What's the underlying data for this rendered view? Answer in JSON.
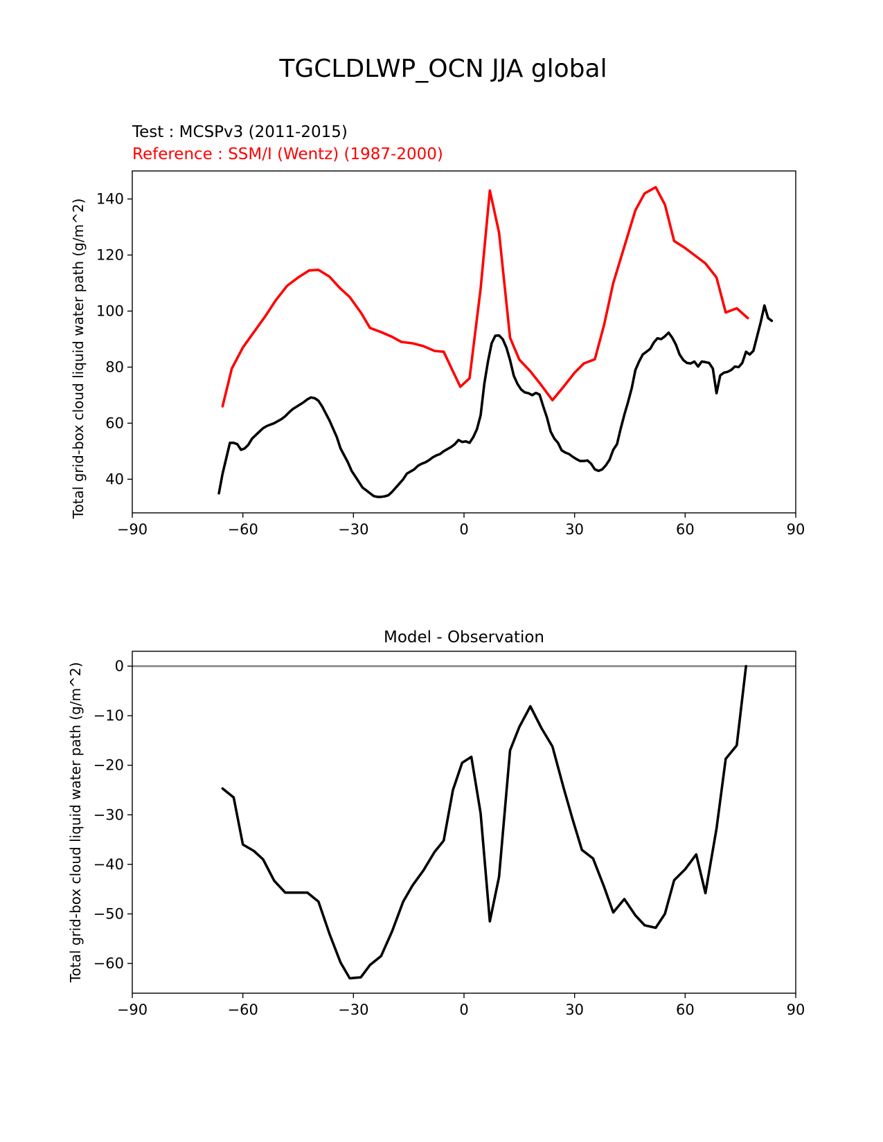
{
  "figure": {
    "title": "TGCLDLWP_OCN JJA global"
  },
  "chart_data": [
    {
      "type": "line",
      "test_label": "Test : MCSPv3 (2011-2015)",
      "reference_label": "Reference : SSM/I (Wentz) (1987-2000)",
      "xlabel": "",
      "ylabel": "Total grid-box cloud liquid water path (g/m^2)",
      "xlim": [
        -90,
        90
      ],
      "ylim": [
        28,
        150
      ],
      "xticks": [
        -90,
        -60,
        -30,
        0,
        30,
        60,
        90
      ],
      "xtick_labels": [
        "−90",
        "−60",
        "−30",
        "0",
        "30",
        "60",
        "90"
      ],
      "yticks": [
        40,
        60,
        80,
        100,
        120,
        140
      ],
      "ytick_labels": [
        "40",
        "60",
        "80",
        "100",
        "120",
        "140"
      ],
      "series": [
        {
          "color": "#ff0000",
          "points": [
            [
              -65.5,
              66
            ],
            [
              -63,
              79.5
            ],
            [
              -60,
              87
            ],
            [
              -57,
              92.5
            ],
            [
              -54,
              98
            ],
            [
              -51,
              104
            ],
            [
              -48,
              109
            ],
            [
              -45,
              112
            ],
            [
              -42,
              114.5
            ],
            [
              -39.5,
              114.7
            ],
            [
              -36.5,
              112.3
            ],
            [
              -33.5,
              108
            ],
            [
              -31,
              105
            ],
            [
              -28,
              99.5
            ],
            [
              -25.5,
              94
            ],
            [
              -22.5,
              92.5
            ],
            [
              -19.5,
              90.8
            ],
            [
              -17,
              89
            ],
            [
              -14,
              88.5
            ],
            [
              -11,
              87.5
            ],
            [
              -8,
              85.8
            ],
            [
              -5.5,
              85.5
            ],
            [
              -3,
              78.5
            ],
            [
              -1,
              73
            ],
            [
              1.5,
              76
            ],
            [
              4.5,
              108
            ],
            [
              7,
              143
            ],
            [
              9.5,
              128
            ],
            [
              12.5,
              90.5
            ],
            [
              15,
              82.7
            ],
            [
              18,
              78.5
            ],
            [
              21,
              73.5
            ],
            [
              24,
              68.2
            ],
            [
              27,
              73
            ],
            [
              30,
              78
            ],
            [
              32.5,
              81.3
            ],
            [
              35.5,
              82.8
            ],
            [
              38,
              95
            ],
            [
              40.5,
              110
            ],
            [
              43.5,
              123
            ],
            [
              46.5,
              136
            ],
            [
              49,
              142
            ],
            [
              52,
              144.2
            ],
            [
              54.5,
              138
            ],
            [
              57,
              125
            ],
            [
              60,
              122.5
            ],
            [
              63,
              119.5
            ],
            [
              65.5,
              117
            ],
            [
              68.5,
              112
            ],
            [
              71,
              99.5
            ],
            [
              74,
              101
            ],
            [
              77,
              97.5
            ]
          ]
        },
        {
          "color": "#000000",
          "points": [
            [
              -66.5,
              35
            ],
            [
              -65.5,
              42
            ],
            [
              -63.5,
              53
            ],
            [
              -62.5,
              53
            ],
            [
              -61.5,
              52.5
            ],
            [
              -60.5,
              50.5
            ],
            [
              -59.5,
              51
            ],
            [
              -58.5,
              52.3
            ],
            [
              -57.5,
              54.5
            ],
            [
              -55.5,
              57
            ],
            [
              -54.5,
              58.2
            ],
            [
              -53.5,
              59
            ],
            [
              -51.5,
              60
            ],
            [
              -49.5,
              61.5
            ],
            [
              -48.5,
              62.5
            ],
            [
              -47.5,
              63.8
            ],
            [
              -46.5,
              65
            ],
            [
              -45.5,
              65.8
            ],
            [
              -43.5,
              67.5
            ],
            [
              -42.5,
              68.5
            ],
            [
              -41.5,
              69.2
            ],
            [
              -40.5,
              68.9
            ],
            [
              -39.5,
              68
            ],
            [
              -38.5,
              66
            ],
            [
              -36.5,
              61
            ],
            [
              -34.5,
              55
            ],
            [
              -33.5,
              51
            ],
            [
              -31.5,
              46
            ],
            [
              -30.5,
              43
            ],
            [
              -29.5,
              41
            ],
            [
              -28.5,
              39
            ],
            [
              -27.5,
              37
            ],
            [
              -26.5,
              36
            ],
            [
              -25.5,
              35
            ],
            [
              -24.5,
              34
            ],
            [
              -23.5,
              33.7
            ],
            [
              -22.5,
              33.7
            ],
            [
              -21.5,
              33.9
            ],
            [
              -20.5,
              34.3
            ],
            [
              -19.5,
              35.5
            ],
            [
              -18.5,
              37
            ],
            [
              -17.5,
              38.5
            ],
            [
              -16.5,
              40
            ],
            [
              -15.5,
              42
            ],
            [
              -13.5,
              43.5
            ],
            [
              -12.5,
              44.8
            ],
            [
              -11.5,
              45.5
            ],
            [
              -10.5,
              46
            ],
            [
              -9.5,
              46.8
            ],
            [
              -8.5,
              47.8
            ],
            [
              -7.5,
              48.5
            ],
            [
              -6.5,
              49
            ],
            [
              -5.5,
              50
            ],
            [
              -3.5,
              51.5
            ],
            [
              -2.5,
              52.5
            ],
            [
              -1.5,
              54
            ],
            [
              -0.5,
              53.3
            ],
            [
              0.5,
              53.5
            ],
            [
              1.5,
              53
            ],
            [
              2.5,
              55
            ],
            [
              3.5,
              57.8
            ],
            [
              4.5,
              62.8
            ],
            [
              5.5,
              74
            ],
            [
              6.5,
              82
            ],
            [
              7.5,
              88.5
            ],
            [
              8.5,
              91.2
            ],
            [
              9.5,
              91.3
            ],
            [
              10.5,
              90
            ],
            [
              11.5,
              87
            ],
            [
              12.5,
              82.5
            ],
            [
              13.5,
              77
            ],
            [
              14.5,
              74
            ],
            [
              15.5,
              72
            ],
            [
              16.5,
              71
            ],
            [
              17.5,
              70.7
            ],
            [
              18.5,
              70
            ],
            [
              19.5,
              70.8
            ],
            [
              20.5,
              70.2
            ],
            [
              21.5,
              66
            ],
            [
              22.5,
              62
            ],
            [
              23.5,
              57
            ],
            [
              24.5,
              54.5
            ],
            [
              25.5,
              53
            ],
            [
              26.5,
              50.3
            ],
            [
              27.5,
              49.5
            ],
            [
              28.5,
              49
            ],
            [
              29.5,
              48
            ],
            [
              30.5,
              47.2
            ],
            [
              31.5,
              46.5
            ],
            [
              32.5,
              46.5
            ],
            [
              33.5,
              46.7
            ],
            [
              34.5,
              45.5
            ],
            [
              35.5,
              43.5
            ],
            [
              36.5,
              43
            ],
            [
              37.5,
              43.5
            ],
            [
              38.5,
              45
            ],
            [
              39.5,
              47
            ],
            [
              40.5,
              50.5
            ],
            [
              41.5,
              52.5
            ],
            [
              42.5,
              58
            ],
            [
              43.5,
              63
            ],
            [
              44.5,
              67.5
            ],
            [
              45.5,
              72.5
            ],
            [
              46.5,
              79
            ],
            [
              47.5,
              82
            ],
            [
              48.5,
              84.5
            ],
            [
              49.5,
              85.5
            ],
            [
              50.5,
              86.5
            ],
            [
              51.5,
              88.8
            ],
            [
              52.5,
              90.3
            ],
            [
              53.5,
              90
            ],
            [
              54.5,
              91
            ],
            [
              55.5,
              92.3
            ],
            [
              56.5,
              90.5
            ],
            [
              57.5,
              88
            ],
            [
              58.5,
              84.5
            ],
            [
              59.5,
              82.5
            ],
            [
              60.5,
              81.5
            ],
            [
              61.5,
              81.3
            ],
            [
              62.5,
              82
            ],
            [
              63.5,
              80.2
            ],
            [
              64.5,
              82
            ],
            [
              65.5,
              81.8
            ],
            [
              66.5,
              81.5
            ],
            [
              67.5,
              79.5
            ],
            [
              68.5,
              70.7
            ],
            [
              69.5,
              77
            ],
            [
              70.5,
              78
            ],
            [
              71.5,
              78.3
            ],
            [
              72.5,
              79
            ],
            [
              73.5,
              80.2
            ],
            [
              74.5,
              80
            ],
            [
              75.5,
              81.5
            ],
            [
              76.5,
              85.5
            ],
            [
              77.5,
              84.5
            ],
            [
              78.5,
              85.8
            ],
            [
              80.5,
              96
            ],
            [
              81.5,
              102
            ],
            [
              82.5,
              97.5
            ],
            [
              83.5,
              96.5
            ]
          ]
        }
      ]
    },
    {
      "type": "line",
      "title": "Model - Observation",
      "xlabel": "",
      "ylabel": "Total grid-box cloud liquid water path (g/m^2)",
      "xlim": [
        -90,
        90
      ],
      "ylim": [
        -66,
        3
      ],
      "xticks": [
        -90,
        -60,
        -30,
        0,
        30,
        60,
        90
      ],
      "xtick_labels": [
        "−90",
        "−60",
        "−30",
        "0",
        "30",
        "60",
        "90"
      ],
      "yticks": [
        0,
        -10,
        -20,
        -30,
        -40,
        -50,
        -60
      ],
      "ytick_labels": [
        "0",
        "−10",
        "−20",
        "−30",
        "−40",
        "−50",
        "−60"
      ],
      "zero_line": {
        "y": 0,
        "color": "#808080"
      },
      "series": [
        {
          "color": "#000000",
          "points": [
            [
              -65.5,
              -24.7
            ],
            [
              -62.5,
              -26.5
            ],
            [
              -60,
              -36
            ],
            [
              -57,
              -37.3
            ],
            [
              -54.5,
              -39
            ],
            [
              -51.5,
              -43.3
            ],
            [
              -48.5,
              -45.7
            ],
            [
              -45.5,
              -45.7
            ],
            [
              -42.5,
              -45.7
            ],
            [
              -39.5,
              -47.5
            ],
            [
              -36.5,
              -54
            ],
            [
              -33.5,
              -59.8
            ],
            [
              -31,
              -63
            ],
            [
              -28,
              -62.8
            ],
            [
              -25.5,
              -60.3
            ],
            [
              -22.5,
              -58.5
            ],
            [
              -19.5,
              -53.5
            ],
            [
              -16.5,
              -47.5
            ],
            [
              -14,
              -44.3
            ],
            [
              -11,
              -41.2
            ],
            [
              -8,
              -37.5
            ],
            [
              -5.5,
              -35.2
            ],
            [
              -3,
              -25
            ],
            [
              -0.5,
              -19.5
            ],
            [
              2,
              -18.3
            ],
            [
              4.5,
              -29.7
            ],
            [
              7,
              -51.5
            ],
            [
              9.5,
              -42.5
            ],
            [
              12.5,
              -17
            ],
            [
              15,
              -12.3
            ],
            [
              18,
              -8.1
            ],
            [
              21,
              -12.5
            ],
            [
              24,
              -16.2
            ],
            [
              27,
              -24.5
            ],
            [
              29.5,
              -31
            ],
            [
              32,
              -37.1
            ],
            [
              35,
              -38.8
            ],
            [
              38,
              -44.5
            ],
            [
              40.5,
              -49.7
            ],
            [
              43.5,
              -47
            ],
            [
              46.5,
              -50.3
            ],
            [
              49,
              -52.3
            ],
            [
              52,
              -52.8
            ],
            [
              54.5,
              -50
            ],
            [
              57,
              -43.2
            ],
            [
              60,
              -41
            ],
            [
              63,
              -38
            ],
            [
              65.5,
              -45.8
            ],
            [
              68.5,
              -32.8
            ],
            [
              71,
              -18.7
            ],
            [
              74,
              -16
            ],
            [
              76.5,
              0
            ]
          ]
        }
      ]
    }
  ]
}
